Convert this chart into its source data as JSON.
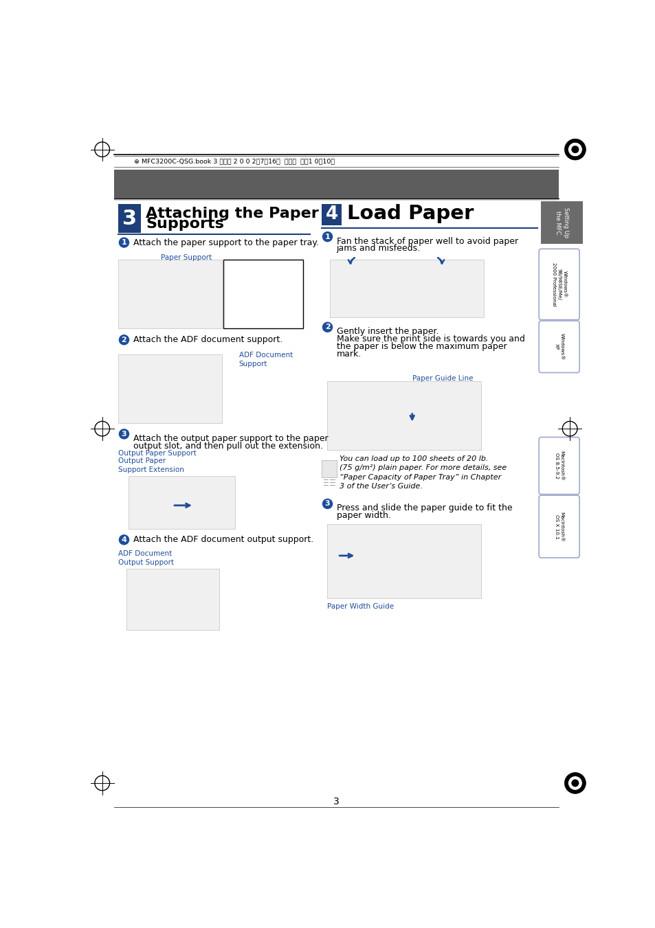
{
  "bg_color": "#ffffff",
  "header_bar_color": "#5d5d5d",
  "header_text": "⊕ MFC3200C-QSG.book 3 ページ 2 0 0 2年7月16日  火曜日  午前1 0時10分",
  "sec3_color": "#1e3f7a",
  "sec4_color": "#1e3f7a",
  "step_color": "#1e4d99",
  "label_color": "#1e4d99",
  "underline_color": "#1e3f7a",
  "sidebar_gray": "#6b6b6b",
  "sidebar_box_border": "#a0a8cc",
  "page_number": "3",
  "sec3_num": "3",
  "sec3_title1": "Attaching the Paper",
  "sec3_title2": "Supports",
  "sec4_num": "4",
  "sec4_title": "Load Paper",
  "s3_step1": "Attach the paper support to the paper tray.",
  "s3_step2": "Attach the ADF document support.",
  "s3_step3_line1": "Attach the output paper support to the paper",
  "s3_step3_line2": "output slot, and then pull out the extension.",
  "s3_step4": "Attach the ADF document output support.",
  "s3_lbl_paper_support": "Paper Support",
  "s3_lbl_adf": "ADF Document\nSupport",
  "s3_lbl_out1": "Output Paper Support",
  "s3_lbl_out2": "Output Paper\nSupport Extension",
  "s3_lbl_adf_out": "ADF Document\nOutput Support",
  "s4_step1_line1": "Fan the stack of paper well to avoid paper",
  "s4_step1_line2": "jams and misfeeds.",
  "s4_step2_line1": "Gently insert the paper.",
  "s4_step2_line2": "Make sure the print side is towards you and",
  "s4_step2_line3": "the paper is below the maximum paper",
  "s4_step2_line4": "mark.",
  "s4_lbl_guide": "Paper Guide Line",
  "s4_note": "You can load up to 100 sheets of 20 lb.\n(75 g/m²) plain paper. For more details, see\n“Paper Capacity of Paper Tray” in Chapter\n3 of the User’s Guide.",
  "s4_step3_line1": "Press and slide the paper guide to fit the",
  "s4_step3_line2": "paper width.",
  "s4_lbl_width": "Paper Width Guide",
  "sb_settingup": "Setting Up\nthe MFC",
  "sb_win98": "Windows®\n98/98SE/Me/\n2000 Professional",
  "sb_winxp": "Windows®\nXP",
  "sb_mac1": "Macintosh®\nOS 8.5-9.2",
  "sb_mac2": "Macintosh®\nOS X 10.1"
}
